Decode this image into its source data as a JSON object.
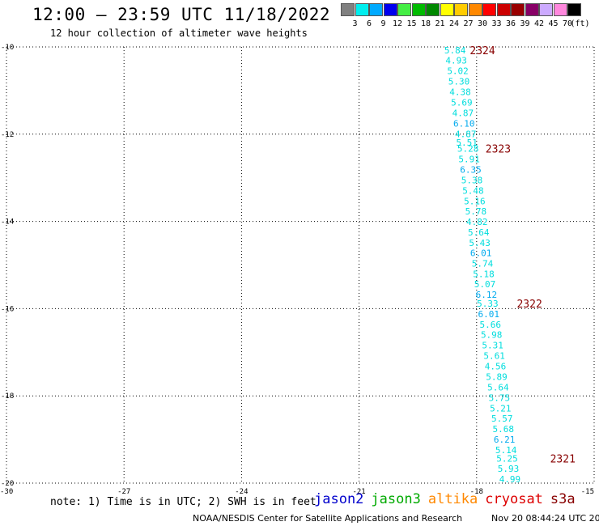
{
  "header": {
    "title": "12:00 — 23:59 UTC 11/18/2022",
    "subtitle": "12 hour collection of altimeter wave heights"
  },
  "scale": {
    "unit": "(ft)",
    "swatches": [
      {
        "color": "#808080",
        "label": "3"
      },
      {
        "color": "#00eeee",
        "label": "6"
      },
      {
        "color": "#00aaff",
        "label": "9"
      },
      {
        "color": "#0000ee",
        "label": "12"
      },
      {
        "color": "#44ee44",
        "label": "15"
      },
      {
        "color": "#00bb00",
        "label": "18"
      },
      {
        "color": "#008800",
        "label": "21"
      },
      {
        "color": "#ffff00",
        "label": "24"
      },
      {
        "color": "#ffcc00",
        "label": "27"
      },
      {
        "color": "#ff8800",
        "label": "30"
      },
      {
        "color": "#ff0000",
        "label": "33"
      },
      {
        "color": "#cc0000",
        "label": "36"
      },
      {
        "color": "#990000",
        "label": "39"
      },
      {
        "color": "#880066",
        "label": "42"
      },
      {
        "color": "#ccaaff",
        "label": "45"
      },
      {
        "color": "#ff88dd",
        "label": "70"
      },
      {
        "color": "#000000",
        "label": ""
      }
    ]
  },
  "chart_data": {
    "type": "scatter",
    "xlim": [
      -30,
      -15
    ],
    "ylim": [
      -20,
      -10
    ],
    "x_ticks": [
      {
        "value": -30,
        "label": "-30"
      },
      {
        "value": -27,
        "label": "-27"
      },
      {
        "value": -24,
        "label": "-24"
      },
      {
        "value": -21,
        "label": "-21"
      },
      {
        "value": -18,
        "label": "-18"
      },
      {
        "value": -15,
        "label": "-15"
      }
    ],
    "y_ticks": [
      {
        "value": -10,
        "label": "-10"
      },
      {
        "value": -12,
        "label": "-12"
      },
      {
        "value": -14,
        "label": "-14"
      },
      {
        "value": -16,
        "label": "-16"
      },
      {
        "value": -18,
        "label": "-18"
      },
      {
        "value": -20,
        "label": "-20"
      }
    ],
    "grid": true,
    "points": [
      {
        "lon": -18.55,
        "lat": -10.07,
        "label": "5.84",
        "color": "#00dddd"
      },
      {
        "lon": -18.52,
        "lat": -10.31,
        "label": "4.93",
        "color": "#00dddd"
      },
      {
        "lon": -18.48,
        "lat": -10.55,
        "label": "5.02",
        "color": "#00dddd"
      },
      {
        "lon": -18.45,
        "lat": -10.79,
        "label": "5.30",
        "color": "#00dddd"
      },
      {
        "lon": -18.42,
        "lat": -11.03,
        "label": "4.38",
        "color": "#00dddd"
      },
      {
        "lon": -18.38,
        "lat": -11.27,
        "label": "5.69",
        "color": "#00dddd"
      },
      {
        "lon": -18.35,
        "lat": -11.51,
        "label": "4.87",
        "color": "#00dddd"
      },
      {
        "lon": -18.32,
        "lat": -11.75,
        "label": "6.10",
        "color": "#00aaee"
      },
      {
        "lon": -18.28,
        "lat": -11.99,
        "label": "4.87",
        "color": "#00dddd"
      },
      {
        "lon": -18.25,
        "lat": -12.19,
        "label": "5.51",
        "color": "#00dddd"
      },
      {
        "lon": -18.22,
        "lat": -12.33,
        "label": "5.28",
        "color": "#00dddd"
      },
      {
        "lon": -18.19,
        "lat": -12.57,
        "label": "5.91",
        "color": "#00dddd"
      },
      {
        "lon": -18.15,
        "lat": -12.81,
        "label": "6.35",
        "color": "#00aaee"
      },
      {
        "lon": -18.12,
        "lat": -13.05,
        "label": "5.38",
        "color": "#00dddd"
      },
      {
        "lon": -18.09,
        "lat": -13.29,
        "label": "5.48",
        "color": "#00dddd"
      },
      {
        "lon": -18.05,
        "lat": -13.53,
        "label": "5.16",
        "color": "#00dddd"
      },
      {
        "lon": -18.02,
        "lat": -13.77,
        "label": "5.78",
        "color": "#00dddd"
      },
      {
        "lon": -17.99,
        "lat": -14.01,
        "label": "4.82",
        "color": "#00dddd"
      },
      {
        "lon": -17.95,
        "lat": -14.25,
        "label": "5.64",
        "color": "#00dddd"
      },
      {
        "lon": -17.92,
        "lat": -14.49,
        "label": "5.43",
        "color": "#00dddd"
      },
      {
        "lon": -17.89,
        "lat": -14.72,
        "label": "6.01",
        "color": "#00aaee"
      },
      {
        "lon": -17.85,
        "lat": -14.96,
        "label": "5.74",
        "color": "#00dddd"
      },
      {
        "lon": -17.82,
        "lat": -15.2,
        "label": "5.18",
        "color": "#00dddd"
      },
      {
        "lon": -17.79,
        "lat": -15.44,
        "label": "5.07",
        "color": "#00dddd"
      },
      {
        "lon": -17.75,
        "lat": -15.68,
        "label": "6.12",
        "color": "#00aaee"
      },
      {
        "lon": -17.72,
        "lat": -15.88,
        "label": "5.33",
        "color": "#00dddd"
      },
      {
        "lon": -17.69,
        "lat": -16.12,
        "label": "6.01",
        "color": "#00aaee"
      },
      {
        "lon": -17.65,
        "lat": -16.36,
        "label": "5.66",
        "color": "#00dddd"
      },
      {
        "lon": -17.62,
        "lat": -16.6,
        "label": "5.98",
        "color": "#00dddd"
      },
      {
        "lon": -17.59,
        "lat": -16.84,
        "label": "5.31",
        "color": "#00dddd"
      },
      {
        "lon": -17.55,
        "lat": -17.08,
        "label": "5.61",
        "color": "#00dddd"
      },
      {
        "lon": -17.52,
        "lat": -17.32,
        "label": "4.56",
        "color": "#00dddd"
      },
      {
        "lon": -17.49,
        "lat": -17.56,
        "label": "5.89",
        "color": "#00dddd"
      },
      {
        "lon": -17.45,
        "lat": -17.8,
        "label": "5.64",
        "color": "#00dddd"
      },
      {
        "lon": -17.42,
        "lat": -18.04,
        "label": "5.75",
        "color": "#00dddd"
      },
      {
        "lon": -17.39,
        "lat": -18.28,
        "label": "5.21",
        "color": "#00dddd"
      },
      {
        "lon": -17.35,
        "lat": -18.52,
        "label": "5.57",
        "color": "#00dddd"
      },
      {
        "lon": -17.32,
        "lat": -18.76,
        "label": "5.68",
        "color": "#00dddd"
      },
      {
        "lon": -17.29,
        "lat": -19.0,
        "label": "6.21",
        "color": "#00aaee"
      },
      {
        "lon": -17.25,
        "lat": -19.24,
        "label": "5.14",
        "color": "#00dddd"
      },
      {
        "lon": -17.22,
        "lat": -19.43,
        "label": "5.25",
        "color": "#00dddd"
      },
      {
        "lon": -17.19,
        "lat": -19.67,
        "label": "5.93",
        "color": "#00dddd"
      },
      {
        "lon": -17.15,
        "lat": -19.91,
        "label": "4.99",
        "color": "#00dddd"
      }
    ],
    "time_labels": [
      {
        "lon": -17.85,
        "lat": -10.07,
        "label": "2324",
        "color": "#880000"
      },
      {
        "lon": -17.45,
        "lat": -12.33,
        "label": "2323",
        "color": "#880000"
      },
      {
        "lon": -16.65,
        "lat": -15.88,
        "label": "2322",
        "color": "#880000"
      },
      {
        "lon": -15.8,
        "lat": -19.43,
        "label": "2321",
        "color": "#880000"
      }
    ]
  },
  "footer": {
    "note": "note: 1) Time is in UTC; 2) SWH is in feet",
    "satellites": [
      {
        "name": "jason2",
        "color": "#0000cc"
      },
      {
        "name": "jason3",
        "color": "#00aa00"
      },
      {
        "name": "altika",
        "color": "#ff8800"
      },
      {
        "name": "cryosat",
        "color": "#dd0000"
      },
      {
        "name": "s3a",
        "color": "#880000"
      }
    ],
    "credit": "NOAA/NESDIS Center for Satellite Applications and Research",
    "timestamp": "Nov 20 08:44:24 UTC 2022"
  }
}
